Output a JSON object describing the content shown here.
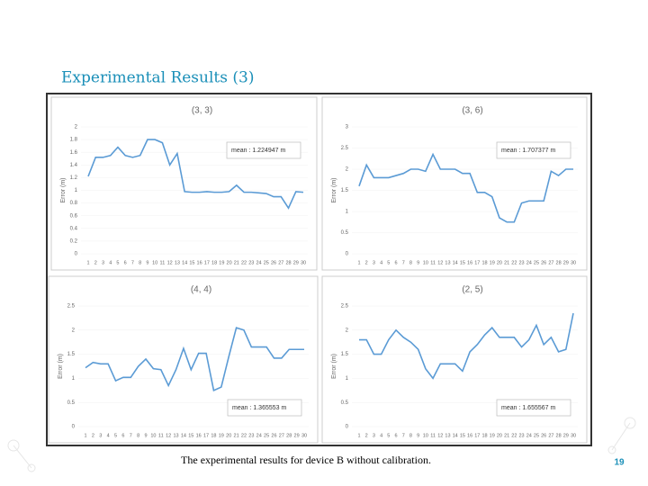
{
  "slide": {
    "title": "Experimental Results (3)",
    "caption": "The experimental results for device B without calibration.",
    "page_number": "19"
  },
  "chart_data": [
    {
      "type": "line",
      "title": "(3, 3)",
      "y_label": "Error (m)",
      "annotation": "mean : 1.224947 m",
      "annotation_position": "top-right",
      "color": "#5b9bd5",
      "categories": [
        "1",
        "2",
        "3",
        "4",
        "5",
        "6",
        "7",
        "8",
        "9",
        "10",
        "11",
        "12",
        "13",
        "14",
        "15",
        "16",
        "17",
        "18",
        "19",
        "20",
        "21",
        "22",
        "23",
        "24",
        "25",
        "26",
        "27",
        "28",
        "29",
        "30"
      ],
      "values": [
        1.22,
        1.52,
        1.52,
        1.55,
        1.68,
        1.55,
        1.52,
        1.55,
        1.8,
        1.8,
        1.75,
        1.4,
        1.58,
        0.98,
        0.97,
        0.97,
        0.98,
        0.97,
        0.97,
        0.98,
        1.08,
        0.97,
        0.97,
        0.96,
        0.95,
        0.9,
        0.9,
        0.72,
        0.98,
        0.97
      ],
      "ylim": [
        0,
        2
      ],
      "yticks": [
        0,
        0.2,
        0.4,
        0.6,
        0.8,
        1,
        1.2,
        1.4,
        1.6,
        1.8,
        2
      ]
    },
    {
      "type": "line",
      "title": "(3, 6)",
      "y_label": "Error (m)",
      "annotation": "mean : 1.707377 m",
      "annotation_position": "top-right",
      "color": "#5b9bd5",
      "categories": [
        "1",
        "2",
        "3",
        "4",
        "5",
        "6",
        "7",
        "8",
        "9",
        "10",
        "11",
        "12",
        "13",
        "14",
        "15",
        "16",
        "17",
        "18",
        "19",
        "20",
        "21",
        "22",
        "23",
        "24",
        "25",
        "26",
        "27",
        "28",
        "29",
        "30"
      ],
      "values": [
        1.6,
        2.1,
        1.8,
        1.8,
        1.8,
        1.85,
        1.9,
        2.0,
        2.0,
        1.95,
        2.35,
        2.0,
        2.0,
        2.0,
        1.9,
        1.9,
        1.45,
        1.45,
        1.35,
        0.85,
        0.75,
        0.75,
        1.2,
        1.25,
        1.25,
        1.25,
        1.95,
        1.85,
        2.0,
        2.0
      ],
      "ylim": [
        0,
        3
      ],
      "yticks": [
        0,
        0.5,
        1,
        1.5,
        2,
        2.5,
        3
      ]
    },
    {
      "type": "line",
      "title": "(4, 4)",
      "y_label": "Error (m)",
      "annotation": "mean : 1.365553 m",
      "annotation_position": "bottom-right",
      "color": "#5b9bd5",
      "categories": [
        "1",
        "2",
        "3",
        "4",
        "5",
        "6",
        "7",
        "8",
        "9",
        "10",
        "11",
        "12",
        "13",
        "14",
        "15",
        "16",
        "17",
        "18",
        "19",
        "20",
        "21",
        "22",
        "23",
        "24",
        "25",
        "26",
        "27",
        "28",
        "29",
        "30"
      ],
      "values": [
        1.22,
        1.33,
        1.3,
        1.3,
        0.95,
        1.02,
        1.02,
        1.25,
        1.4,
        1.2,
        1.18,
        0.85,
        1.18,
        1.62,
        1.18,
        1.52,
        1.52,
        0.75,
        0.82,
        1.45,
        2.05,
        2.0,
        1.65,
        1.65,
        1.65,
        1.42,
        1.42,
        1.6,
        1.6,
        1.6
      ],
      "ylim": [
        0,
        2.5
      ],
      "yticks": [
        0,
        0.5,
        1,
        1.5,
        2,
        2.5
      ]
    },
    {
      "type": "line",
      "title": "(2, 5)",
      "y_label": "Error (m)",
      "annotation": "mean : 1.655567 m",
      "annotation_position": "bottom-right",
      "color": "#5b9bd5",
      "categories": [
        "1",
        "2",
        "3",
        "4",
        "5",
        "6",
        "7",
        "8",
        "9",
        "10",
        "11",
        "12",
        "13",
        "14",
        "15",
        "16",
        "17",
        "18",
        "19",
        "20",
        "21",
        "22",
        "23",
        "24",
        "25",
        "26",
        "27",
        "28",
        "29",
        "30"
      ],
      "values": [
        1.8,
        1.8,
        1.5,
        1.5,
        1.8,
        2.0,
        1.85,
        1.75,
        1.6,
        1.2,
        1.0,
        1.3,
        1.3,
        1.3,
        1.15,
        1.55,
        1.7,
        1.9,
        2.05,
        1.85,
        1.85,
        1.85,
        1.65,
        1.8,
        2.1,
        1.7,
        1.85,
        1.55,
        1.6,
        2.35
      ],
      "ylim": [
        0,
        2.5
      ],
      "yticks": [
        0,
        0.5,
        1,
        1.5,
        2,
        2.5
      ]
    }
  ]
}
